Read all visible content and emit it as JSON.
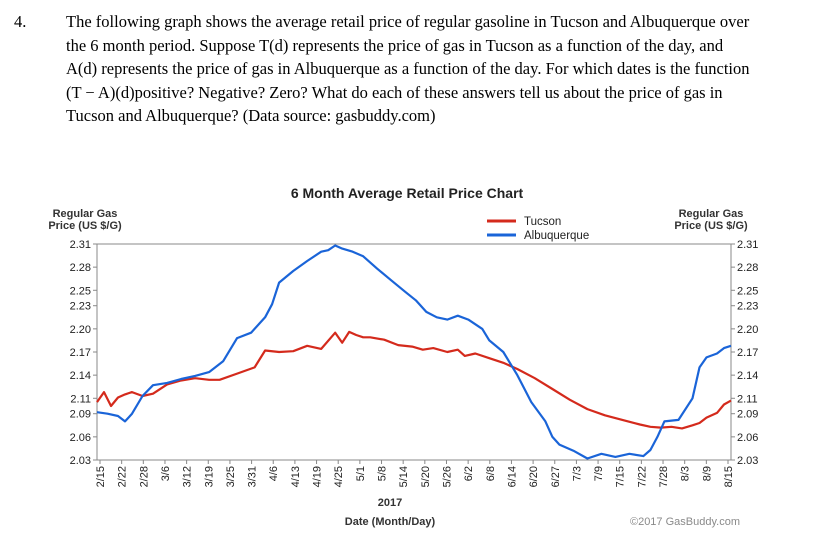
{
  "problem": {
    "number": "4.",
    "lines": [
      "The following graph shows the average retail price of regular gasoline in Tucson and Albuquerque over",
      "the 6 month period.  Suppose T(d) represents the price of gas in Tucson as a function of the day, and",
      "A(d) represents the price of gas in Albuquerque as a function of the day.  For which dates is the function",
      "(T − A)(d)positive? Negative? Zero? What do each of these answers tell us about the price of gas in",
      "Tucson and Albuquerque? (Data source: gasbuddy.com)"
    ]
  },
  "chart_data": {
    "type": "line",
    "title": "6 Month Average Retail Price Chart",
    "ylabel_left_line1": "Regular Gas",
    "ylabel_left_line2": "Price (US $/G)",
    "ylabel_right_line1": "Regular Gas",
    "ylabel_right_line2": "Price (US $/G)",
    "xlabel_year": "2017",
    "xlabel": "Date (Month/Day)",
    "credit": "©2017 GasBuddy.com",
    "ylim": [
      2.03,
      2.31
    ],
    "yticks": [
      2.31,
      2.28,
      2.25,
      2.23,
      2.2,
      2.17,
      2.14,
      2.11,
      2.09,
      2.06,
      2.03
    ],
    "xticks": [
      "2/15",
      "2/22",
      "2/28",
      "3/6",
      "3/12",
      "3/19",
      "3/25",
      "3/31",
      "4/6",
      "4/13",
      "4/19",
      "4/25",
      "5/1",
      "5/8",
      "5/14",
      "5/20",
      "5/26",
      "6/2",
      "6/8",
      "6/14",
      "6/20",
      "6/27",
      "7/3",
      "7/9",
      "7/15",
      "7/22",
      "7/28",
      "8/3",
      "8/9",
      "8/15"
    ],
    "grid": false,
    "legend_position": "top-right",
    "x_range": [
      0,
      181
    ],
    "series": [
      {
        "name": "Tucson",
        "color": "#d42a1c",
        "x": [
          0,
          2,
          4,
          6,
          8,
          10,
          13,
          16,
          20,
          24,
          28,
          32,
          35,
          40,
          45,
          48,
          52,
          56,
          60,
          64,
          68,
          70,
          72,
          74,
          76,
          78,
          82,
          86,
          90,
          93,
          96,
          100,
          103,
          105,
          108,
          112,
          116,
          120,
          125,
          130,
          135,
          140,
          145,
          150,
          155,
          158,
          161,
          164,
          167,
          170,
          172,
          174,
          177,
          179,
          181
        ],
        "values": [
          2.105,
          2.118,
          2.1,
          2.111,
          2.115,
          2.118,
          2.113,
          2.116,
          2.128,
          2.133,
          2.136,
          2.134,
          2.134,
          2.142,
          2.15,
          2.172,
          2.17,
          2.171,
          2.178,
          2.174,
          2.195,
          2.182,
          2.196,
          2.192,
          2.189,
          2.189,
          2.186,
          2.179,
          2.177,
          2.173,
          2.175,
          2.17,
          2.173,
          2.165,
          2.168,
          2.162,
          2.156,
          2.148,
          2.136,
          2.122,
          2.108,
          2.096,
          2.088,
          2.082,
          2.076,
          2.073,
          2.072,
          2.073,
          2.071,
          2.075,
          2.078,
          2.085,
          2.091,
          2.102,
          2.107
        ]
      },
      {
        "name": "Albuquerque",
        "color": "#1a64d8",
        "x": [
          0,
          3,
          6,
          8,
          10,
          13,
          16,
          20,
          24,
          28,
          32,
          36,
          40,
          44,
          48,
          50,
          52,
          56,
          60,
          64,
          66,
          68,
          70,
          73,
          76,
          80,
          84,
          88,
          91,
          94,
          97,
          100,
          103,
          106,
          110,
          112,
          116,
          120,
          124,
          128,
          130,
          132,
          136,
          140,
          144,
          148,
          152,
          156,
          158,
          160,
          162,
          166,
          170,
          172,
          174,
          177,
          179,
          181
        ],
        "values": [
          2.092,
          2.09,
          2.087,
          2.08,
          2.09,
          2.113,
          2.127,
          2.13,
          2.135,
          2.139,
          2.144,
          2.158,
          2.188,
          2.195,
          2.215,
          2.232,
          2.26,
          2.275,
          2.288,
          2.3,
          2.302,
          2.308,
          2.304,
          2.3,
          2.294,
          2.278,
          2.263,
          2.248,
          2.237,
          2.222,
          2.215,
          2.212,
          2.217,
          2.212,
          2.2,
          2.185,
          2.17,
          2.14,
          2.105,
          2.08,
          2.06,
          2.05,
          2.042,
          2.032,
          2.038,
          2.034,
          2.038,
          2.035,
          2.043,
          2.06,
          2.08,
          2.082,
          2.11,
          2.15,
          2.163,
          2.168,
          2.175,
          2.178
        ]
      }
    ]
  }
}
